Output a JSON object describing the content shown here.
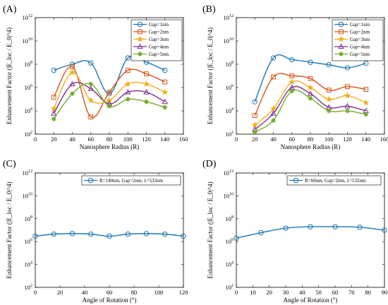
{
  "chart_data": [
    {
      "id": "A",
      "type": "line",
      "x_type": "linear",
      "y_scale": "log",
      "xlim": [
        0,
        160
      ],
      "xticks": [
        0,
        20,
        40,
        60,
        80,
        100,
        120,
        140,
        160
      ],
      "ylim_exp": [
        2,
        12
      ],
      "yticks_exp": [
        2,
        4,
        6,
        8,
        10,
        12
      ],
      "xlabel": "Nanosphere Radius (R)",
      "ylabel": "Enhancement Factor (|E_loc / E_0|^4)",
      "legend_position": "top-right",
      "x": [
        20,
        40,
        60,
        80,
        100,
        120,
        140
      ],
      "series": [
        {
          "name": "Gap=1nm",
          "color": "#1f77b4",
          "marker": "circle",
          "values": [
            30000000.0,
            100000000.0,
            130000000.0,
            300000.0,
            350000000.0,
            150000000.0,
            30000000.0
          ]
        },
        {
          "name": "Gap=2nm",
          "color": "#d95319",
          "marker": "square",
          "values": [
            150000.0,
            60000000.0,
            3000.0,
            400000.0,
            30000000.0,
            15000000.0,
            3000000.0
          ]
        },
        {
          "name": "Gap=3nm",
          "color": "#edb120",
          "marker": "star",
          "values": [
            15000.0,
            20000000.0,
            80000.0,
            80000.0,
            2000000.0,
            2000000.0,
            400000.0
          ]
        },
        {
          "name": "Gap=4nm",
          "color": "#7e2f8e",
          "marker": "triangle",
          "values": [
            6000.0,
            2000000.0,
            800000.0,
            40000.0,
            400000.0,
            400000.0,
            60000.0
          ]
        },
        {
          "name": "Gap=5nm",
          "color": "#77ac30",
          "marker": "asterisk",
          "values": [
            2000.0,
            300000.0,
            2000000.0,
            25000.0,
            100000.0,
            60000.0,
            20000.0
          ]
        }
      ]
    },
    {
      "id": "B",
      "type": "line",
      "x_type": "linear",
      "y_scale": "log",
      "xlim": [
        0,
        160
      ],
      "xticks": [
        0,
        20,
        40,
        60,
        80,
        100,
        120,
        140,
        160
      ],
      "ylim_exp": [
        2,
        12
      ],
      "yticks_exp": [
        2,
        4,
        6,
        8,
        10,
        12
      ],
      "xlabel": "Nanosphere Radius (R)",
      "ylabel": "Enhancement Factor (|E_loc / E_0|^4)",
      "legend_position": "top-right",
      "x": [
        20,
        40,
        60,
        80,
        100,
        120,
        140
      ],
      "series": [
        {
          "name": "Gap=1nm",
          "color": "#1f77b4",
          "marker": "circle",
          "values": [
            60000.0,
            350000000.0,
            250000000.0,
            150000000.0,
            90000000.0,
            50000000.0,
            120000000.0
          ]
        },
        {
          "name": "Gap=2nm",
          "color": "#d95319",
          "marker": "square",
          "values": [
            4000.0,
            8000000.0,
            10000000.0,
            6000000.0,
            600000.0,
            1200000.0,
            700000.0
          ]
        },
        {
          "name": "Gap=3nm",
          "color": "#edb120",
          "marker": "star",
          "values": [
            600.0,
            15000.0,
            3000000.0,
            1000000.0,
            100000.0,
            200000.0,
            50000.0
          ]
        },
        {
          "name": "Gap=4nm",
          "color": "#7e2f8e",
          "marker": "triangle",
          "values": [
            250.0,
            6000.0,
            1000000.0,
            300000.0,
            20000.0,
            25000.0,
            10000.0
          ]
        },
        {
          "name": "Gap=5nm",
          "color": "#77ac30",
          "marker": "asterisk",
          "values": [
            150.0,
            1500.0,
            500000.0,
            120000.0,
            10000.0,
            10000.0,
            5000.0
          ]
        }
      ]
    },
    {
      "id": "C",
      "type": "line",
      "x_type": "linear",
      "y_scale": "log",
      "xlim": [
        0,
        120
      ],
      "xticks": [
        0,
        20,
        40,
        60,
        80,
        100,
        120
      ],
      "ylim_exp": [
        2,
        12
      ],
      "yticks_exp": [
        2,
        4,
        6,
        8,
        10,
        12
      ],
      "xlabel": "Angle of Rotation (°)",
      "ylabel": "Enhancement Factor (|E_loc / E_0|^4)",
      "legend_position": "top",
      "x": [
        0,
        15,
        30,
        45,
        60,
        75,
        90,
        105,
        120
      ],
      "series": [
        {
          "name": "R=140nm, Gap=2nm, λ=532nm",
          "color": "#1f77b4",
          "marker": "circle",
          "values": [
            3000000.0,
            4500000.0,
            5000000.0,
            4500000.0,
            3000000.0,
            4500000.0,
            5000000.0,
            4500000.0,
            3000000.0
          ]
        }
      ]
    },
    {
      "id": "D",
      "type": "line",
      "x_type": "linear",
      "y_scale": "log",
      "xlim": [
        0,
        90
      ],
      "xticks": [
        0,
        10,
        20,
        30,
        40,
        50,
        60,
        70,
        80,
        90
      ],
      "ylim_exp": [
        2,
        12
      ],
      "yticks_exp": [
        2,
        4,
        6,
        8,
        10,
        12
      ],
      "xlabel": "Angle of Rotation (°)",
      "ylabel": "Enhancement Factor (|E_loc / E_0|^4)",
      "legend_position": "top",
      "x": [
        0,
        15,
        30,
        45,
        60,
        75,
        90
      ],
      "series": [
        {
          "name": "R=60nm, Gap=2nm, λ=532nm",
          "color": "#1f77b4",
          "marker": "circle",
          "values": [
            2000000.0,
            6000000.0,
            15000000.0,
            20000000.0,
            20000000.0,
            18000000.0,
            10000000.0
          ]
        }
      ]
    }
  ]
}
